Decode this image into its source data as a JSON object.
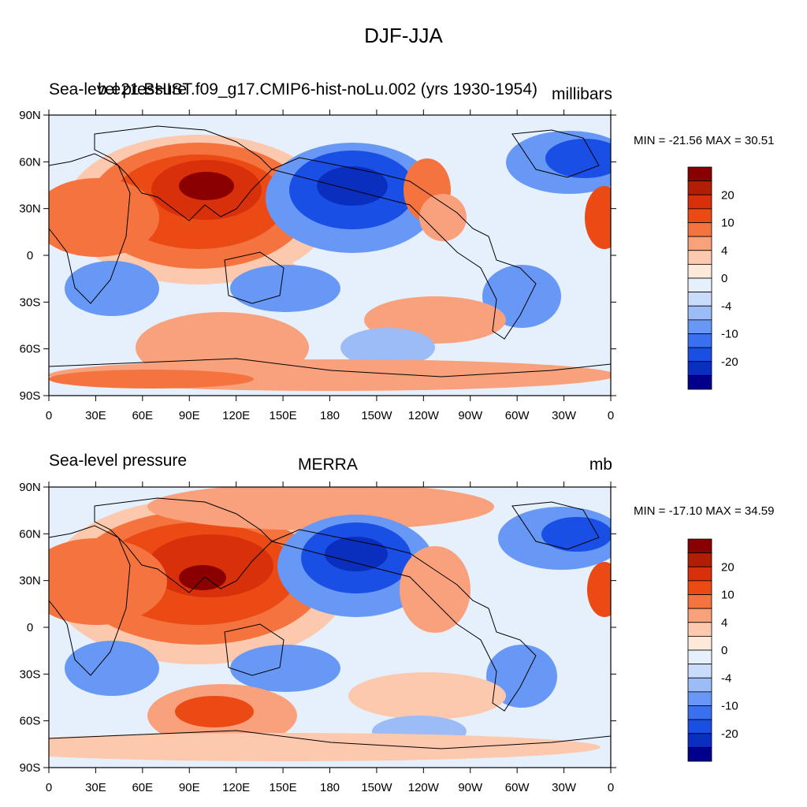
{
  "title": "DJF-JJA",
  "colors": [
    "#00008c",
    "#0a2fbe",
    "#1a4fe6",
    "#3a70f0",
    "#6898f5",
    "#9cbcf8",
    "#c9dcfb",
    "#e6f0fd",
    "#fde9da",
    "#fcc9ae",
    "#f9a07c",
    "#f4733f",
    "#ec4a14",
    "#d8300a",
    "#b01e06",
    "#8a0000"
  ],
  "colorbar_labels": [
    "-20",
    "-10",
    "-4",
    "0",
    "4",
    "10",
    "20"
  ],
  "x_tick_labels": [
    "0",
    "30E",
    "60E",
    "90E",
    "120E",
    "150E",
    "180",
    "150W",
    "120W",
    "90W",
    "60W",
    "30W",
    "0"
  ],
  "y_tick_labels": [
    "90N",
    "60N",
    "30N",
    "0",
    "30S",
    "60S",
    "90S"
  ],
  "panels": [
    {
      "left_title": "Sea-level pressure",
      "center_title": "b.e21.BHIST.f09_g17.CMIP6-hist-noLu.002 (yrs 1930-1954)",
      "right_title": "millibars",
      "min_max": "MIN = -21.56 MAX =  30.51"
    },
    {
      "left_title": "Sea-level pressure",
      "center_title": "MERRA",
      "right_title": "mb",
      "min_max": "MIN = -17.10 MAX =  34.59"
    }
  ]
}
